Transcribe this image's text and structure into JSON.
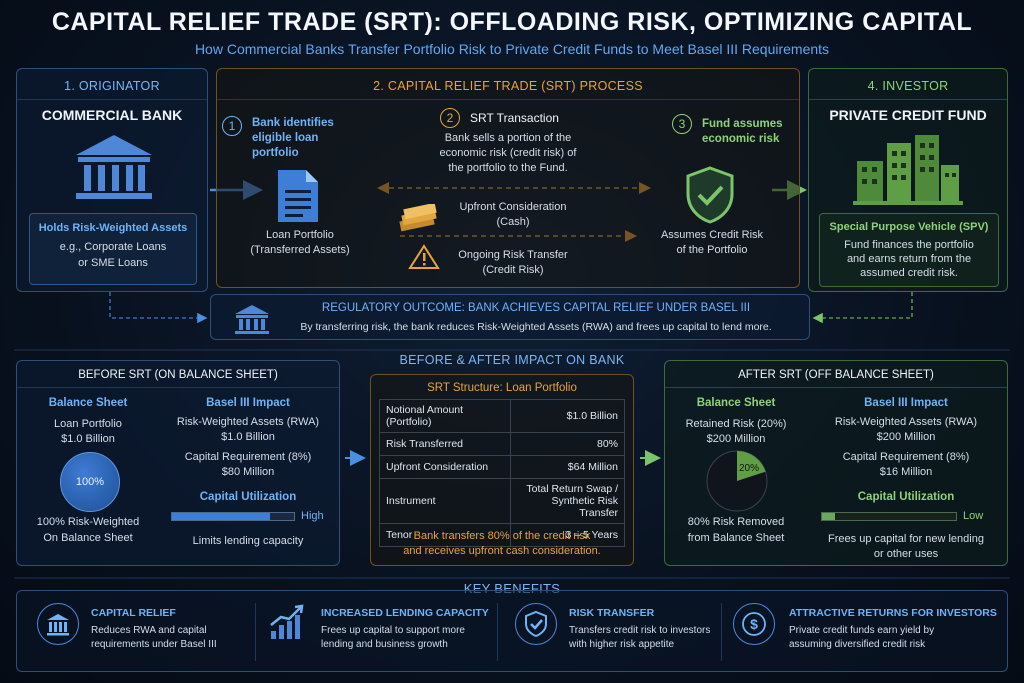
{
  "title": "CAPITAL RELIEF TRADE (SRT): OFFLOADING RISK, OPTIMIZING CAPITAL",
  "subtitle": "How Commercial Banks Transfer Portfolio Risk to Private Credit Funds to Meet Basel III Requirements",
  "originator": {
    "header": "1. ORIGINATOR",
    "name": "COMMERCIAL BANK",
    "box_title": "Holds Risk-Weighted Assets",
    "box_line1": "e.g., Corporate Loans",
    "box_line2": "or SME Loans"
  },
  "process": {
    "header": "2. CAPITAL RELIEF TRADE (SRT) PROCESS",
    "step1": {
      "num": "1",
      "line1": "Bank identifies",
      "line2": "eligible loan",
      "line3": "portfolio"
    },
    "step2": {
      "num": "2",
      "title": "SRT Transaction",
      "line1": "Bank sells a portion of the",
      "line2": "economic risk (credit risk) of",
      "line3": "the portfolio to the Fund."
    },
    "step3": {
      "num": "3",
      "line1": "Fund assumes",
      "line2": "economic risk"
    },
    "loan_label1": "Loan Portfolio",
    "loan_label2": "(Transferred Assets)",
    "upfront1": "Upfront Consideration",
    "upfront2": "(Cash)",
    "ongoing1": "Ongoing Risk Transfer",
    "ongoing2": "(Credit Risk)",
    "assumes1": "Assumes Credit Risk",
    "assumes2": "of the Portfolio"
  },
  "investor": {
    "header": "4. INVESTOR",
    "name": "PRIVATE CREDIT FUND",
    "box_title": "Special Purpose Vehicle (SPV)",
    "box_line1": "Fund finances the portfolio",
    "box_line2": "and earns return from the",
    "box_line3": "assumed credit risk."
  },
  "regulatory": {
    "title": "REGULATORY OUTCOME: BANK ACHIEVES CAPITAL RELIEF UNDER BASEL III",
    "text": "By transferring risk, the bank reduces Risk-Weighted Assets (RWA) and frees up capital to lend more."
  },
  "impact_header": "BEFORE & AFTER IMPACT ON BANK",
  "before": {
    "header": "BEFORE SRT (ON BALANCE SHEET)",
    "bs_title": "Balance Sheet",
    "bs_line1": "Loan Portfolio",
    "bs_line2": "$1.0 Billion",
    "circle_label": "100%",
    "bs_foot1": "100% Risk-Weighted",
    "bs_foot2": "On Balance Sheet",
    "basel_title": "Basel III Impact",
    "rwa_label": "Risk-Weighted Assets (RWA)",
    "rwa_value": "$1.0 Billion",
    "cap_label": "Capital Requirement (8%)",
    "cap_value": "$80 Million",
    "util_title": "Capital Utilization",
    "util_level": "High",
    "util_fill": 0.8,
    "util_note": "Limits lending capacity"
  },
  "structure": {
    "title": "SRT Structure: Loan Portfolio",
    "rows": [
      {
        "label": "Notional Amount (Portfolio)",
        "value": "$1.0 Billion"
      },
      {
        "label": "Risk Transferred",
        "value": "80%"
      },
      {
        "label": "Upfront Consideration",
        "value": "$64 Million"
      },
      {
        "label": "Instrument",
        "value": "Total Return Swap /",
        "value2": "Synthetic Risk Transfer"
      },
      {
        "label": "Tenor",
        "value": "3 – 5 Years"
      }
    ],
    "note1": "Bank transfers 80% of the credit risk",
    "note2": "and receives upfront cash consideration."
  },
  "after": {
    "header": "AFTER SRT (OFF BALANCE SHEET)",
    "bs_title": "Balance Sheet",
    "bs_line1": "Retained Risk (20%)",
    "bs_line2": "$200 Million",
    "pie_label": "20%",
    "pie_fraction": 0.2,
    "bs_foot1": "80% Risk Removed",
    "bs_foot2": "from Balance Sheet",
    "basel_title": "Basel III Impact",
    "rwa_label": "Risk-Weighted Assets (RWA)",
    "rwa_value": "$200 Million",
    "cap_label": "Capital Requirement (8%)",
    "cap_value": "$16 Million",
    "util_title": "Capital Utilization",
    "util_level": "Low",
    "util_fill": 0.1,
    "util_note1": "Frees up capital for new lending",
    "util_note2": "or other uses"
  },
  "benefits": {
    "header": "KEY BENEFITS",
    "items": [
      {
        "title": "CAPITAL RELIEF",
        "line1": "Reduces RWA and capital",
        "line2": "requirements under Basel III",
        "icon": "bank-icon"
      },
      {
        "title": "INCREASED LENDING CAPACITY",
        "line1": "Frees up capital to support more",
        "line2": "lending and business growth",
        "icon": "growth-chart-icon"
      },
      {
        "title": "RISK TRANSFER",
        "line1": "Transfers credit risk to investors",
        "line2": "with higher risk appetite",
        "icon": "shield-icon"
      },
      {
        "title": "ATTRACTIVE RETURNS FOR INVESTORS",
        "line1": "Private credit funds earn yield by",
        "line2": "assuming diversified credit risk",
        "icon": "dollar-icon"
      }
    ]
  },
  "colors": {
    "blue": "#6fb3f7",
    "orange": "#e9a33a",
    "green": "#8fd27a"
  }
}
